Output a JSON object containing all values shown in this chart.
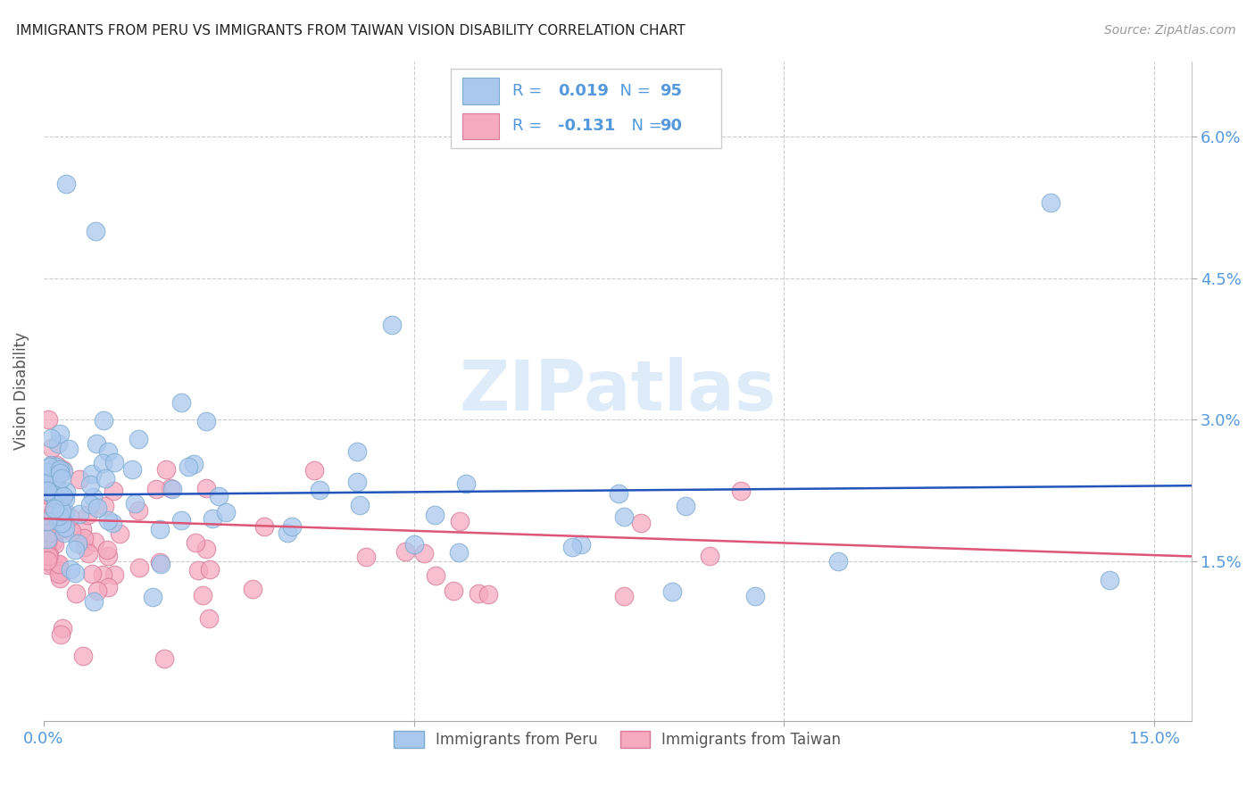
{
  "title": "IMMIGRANTS FROM PERU VS IMMIGRANTS FROM TAIWAN VISION DISABILITY CORRELATION CHART",
  "source": "Source: ZipAtlas.com",
  "ylabel": "Vision Disability",
  "xlim": [
    0.0,
    0.155
  ],
  "ylim": [
    -0.002,
    0.068
  ],
  "ytick_vals": [
    0.015,
    0.03,
    0.045,
    0.06
  ],
  "ytick_labels": [
    "1.5%",
    "3.0%",
    "4.5%",
    "6.0%"
  ],
  "xtick_vals": [
    0.0,
    0.05,
    0.1,
    0.15
  ],
  "xtick_labels": [
    "0.0%",
    "",
    "",
    "15.0%"
  ],
  "peru_color": "#aac8ee",
  "peru_edge_color": "#7aaad0",
  "taiwan_color": "#f5aac0",
  "taiwan_edge_color": "#d87898",
  "peru_line_color": "#2255bb",
  "taiwan_line_color": "#dd5577",
  "peru_R": 0.019,
  "peru_N": 95,
  "taiwan_R": -0.131,
  "taiwan_N": 90,
  "watermark": "ZIPatlas",
  "background_color": "#ffffff",
  "grid_color": "#cccccc",
  "axis_label_color": "#5599dd",
  "title_color": "#222222",
  "legend_text_color": "#5599dd",
  "peru_line_y0": 0.022,
  "peru_line_y1": 0.023,
  "taiwan_line_y0": 0.0195,
  "taiwan_line_y1": 0.0155
}
